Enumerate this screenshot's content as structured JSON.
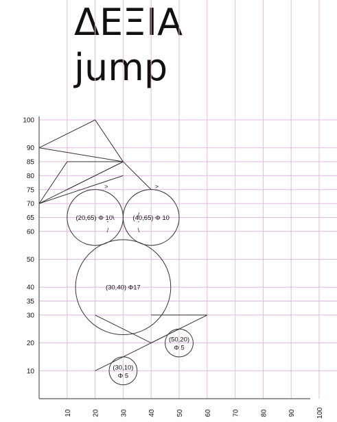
{
  "title": {
    "line1": "ΔΕΞΙΑ",
    "line2": "jump"
  },
  "colors": {
    "grid": "#e3b8e0",
    "stroke": "#333333",
    "text": "#111111"
  },
  "axes": {
    "x_ticks": [
      10,
      20,
      30,
      40,
      50,
      60,
      70,
      80,
      90,
      100
    ],
    "y_ticks": [
      10,
      20,
      30,
      35,
      40,
      50,
      60,
      65,
      70,
      75,
      80,
      85,
      90,
      100
    ]
  },
  "lines": [
    [
      [
        0,
        90
      ],
      [
        20,
        100
      ]
    ],
    [
      [
        20,
        100
      ],
      [
        30,
        85
      ]
    ],
    [
      [
        0,
        90
      ],
      [
        30,
        85
      ]
    ],
    [
      [
        30,
        85
      ],
      [
        10,
        85
      ]
    ],
    [
      [
        10,
        85
      ],
      [
        0,
        70
      ]
    ],
    [
      [
        0,
        70
      ],
      [
        30,
        85
      ]
    ],
    [
      [
        0,
        70
      ],
      [
        30,
        80
      ]
    ],
    [
      [
        30,
        85
      ],
      [
        10,
        75
      ]
    ],
    [
      [
        30,
        85
      ],
      [
        40,
        75
      ]
    ],
    [
      [
        20,
        30
      ],
      [
        40,
        20
      ]
    ],
    [
      [
        40,
        20
      ],
      [
        50,
        25
      ]
    ],
    [
      [
        40,
        30
      ],
      [
        60,
        30
      ]
    ],
    [
      [
        60,
        30
      ],
      [
        20,
        10
      ]
    ]
  ],
  "circles": [
    {
      "cx": 20,
      "cy": 65,
      "r": 10,
      "label": "(20,65) Φ 10\\"
    },
    {
      "cx": 40,
      "cy": 65,
      "r": 10,
      "label": "(40,65) Φ 10"
    },
    {
      "cx": 30,
      "cy": 40,
      "r": 17,
      "label": "(30,40) Φ17"
    },
    {
      "cx": 50,
      "cy": 20,
      "r": 5,
      "label": "(50,20)",
      "label2": "Φ 5"
    },
    {
      "cx": 30,
      "cy": 10,
      "r": 5,
      "label": "(30,10)",
      "label2": "Φ 5"
    }
  ],
  "marks": [
    {
      "x": 24,
      "y": 76,
      "text": ">"
    },
    {
      "x": 42,
      "y": 76,
      "text": ">"
    },
    {
      "x": 35.5,
      "y": 66,
      "text": "/"
    },
    {
      "x": 35.5,
      "y": 63.5,
      "text": "-"
    },
    {
      "x": 35.5,
      "y": 60.5,
      "text": "\\"
    },
    {
      "x": 24.5,
      "y": 63.5,
      "text": "-"
    },
    {
      "x": 24.5,
      "y": 60.5,
      "text": "/"
    }
  ]
}
